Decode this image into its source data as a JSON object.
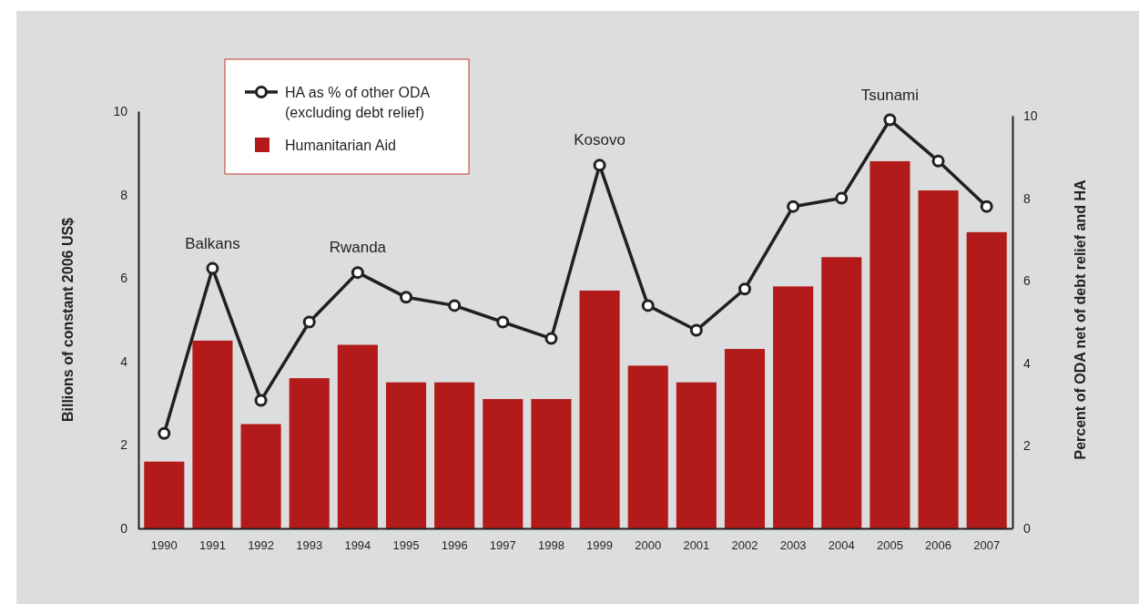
{
  "chart_data": {
    "type": "bar",
    "ylabel": "Billions of constant 2006 US$",
    "y2label": "Percent of ODA net of debt relief and HA",
    "categories": [
      "1990",
      "1991",
      "1992",
      "1993",
      "1994",
      "1995",
      "1996",
      "1997",
      "1998",
      "1999",
      "2000",
      "2001",
      "2002",
      "2003",
      "2004",
      "2005",
      "2006",
      "2007"
    ],
    "series": [
      {
        "name": "Humanitarian Aid",
        "color": "#b31b1b",
        "values": [
          1.6,
          4.5,
          2.5,
          3.6,
          4.4,
          3.5,
          3.5,
          3.1,
          3.1,
          5.7,
          3.9,
          3.5,
          4.3,
          5.8,
          6.5,
          8.8,
          8.1,
          7.1
        ]
      },
      {
        "name": "HA as % of other ODA (excluding debt relief)",
        "type": "line",
        "axis": "y2",
        "color": "#231f20",
        "marker": "circle",
        "values": [
          2.3,
          6.3,
          3.1,
          5.0,
          6.2,
          5.6,
          5.4,
          5.0,
          4.6,
          8.8,
          5.4,
          4.8,
          5.8,
          7.8,
          8.0,
          9.9,
          8.9,
          7.8
        ]
      }
    ],
    "ylim": [
      0,
      10
    ],
    "yticks": [
      0,
      2,
      4,
      6,
      8,
      10
    ],
    "y2lim": [
      0,
      10
    ],
    "y2ticks": [
      0,
      2,
      4,
      6,
      8,
      10
    ],
    "grid": false,
    "legend": "top left",
    "annotations": [
      "Balkans",
      "Rwanda",
      "Kosovo",
      "Tsunami"
    ]
  }
}
